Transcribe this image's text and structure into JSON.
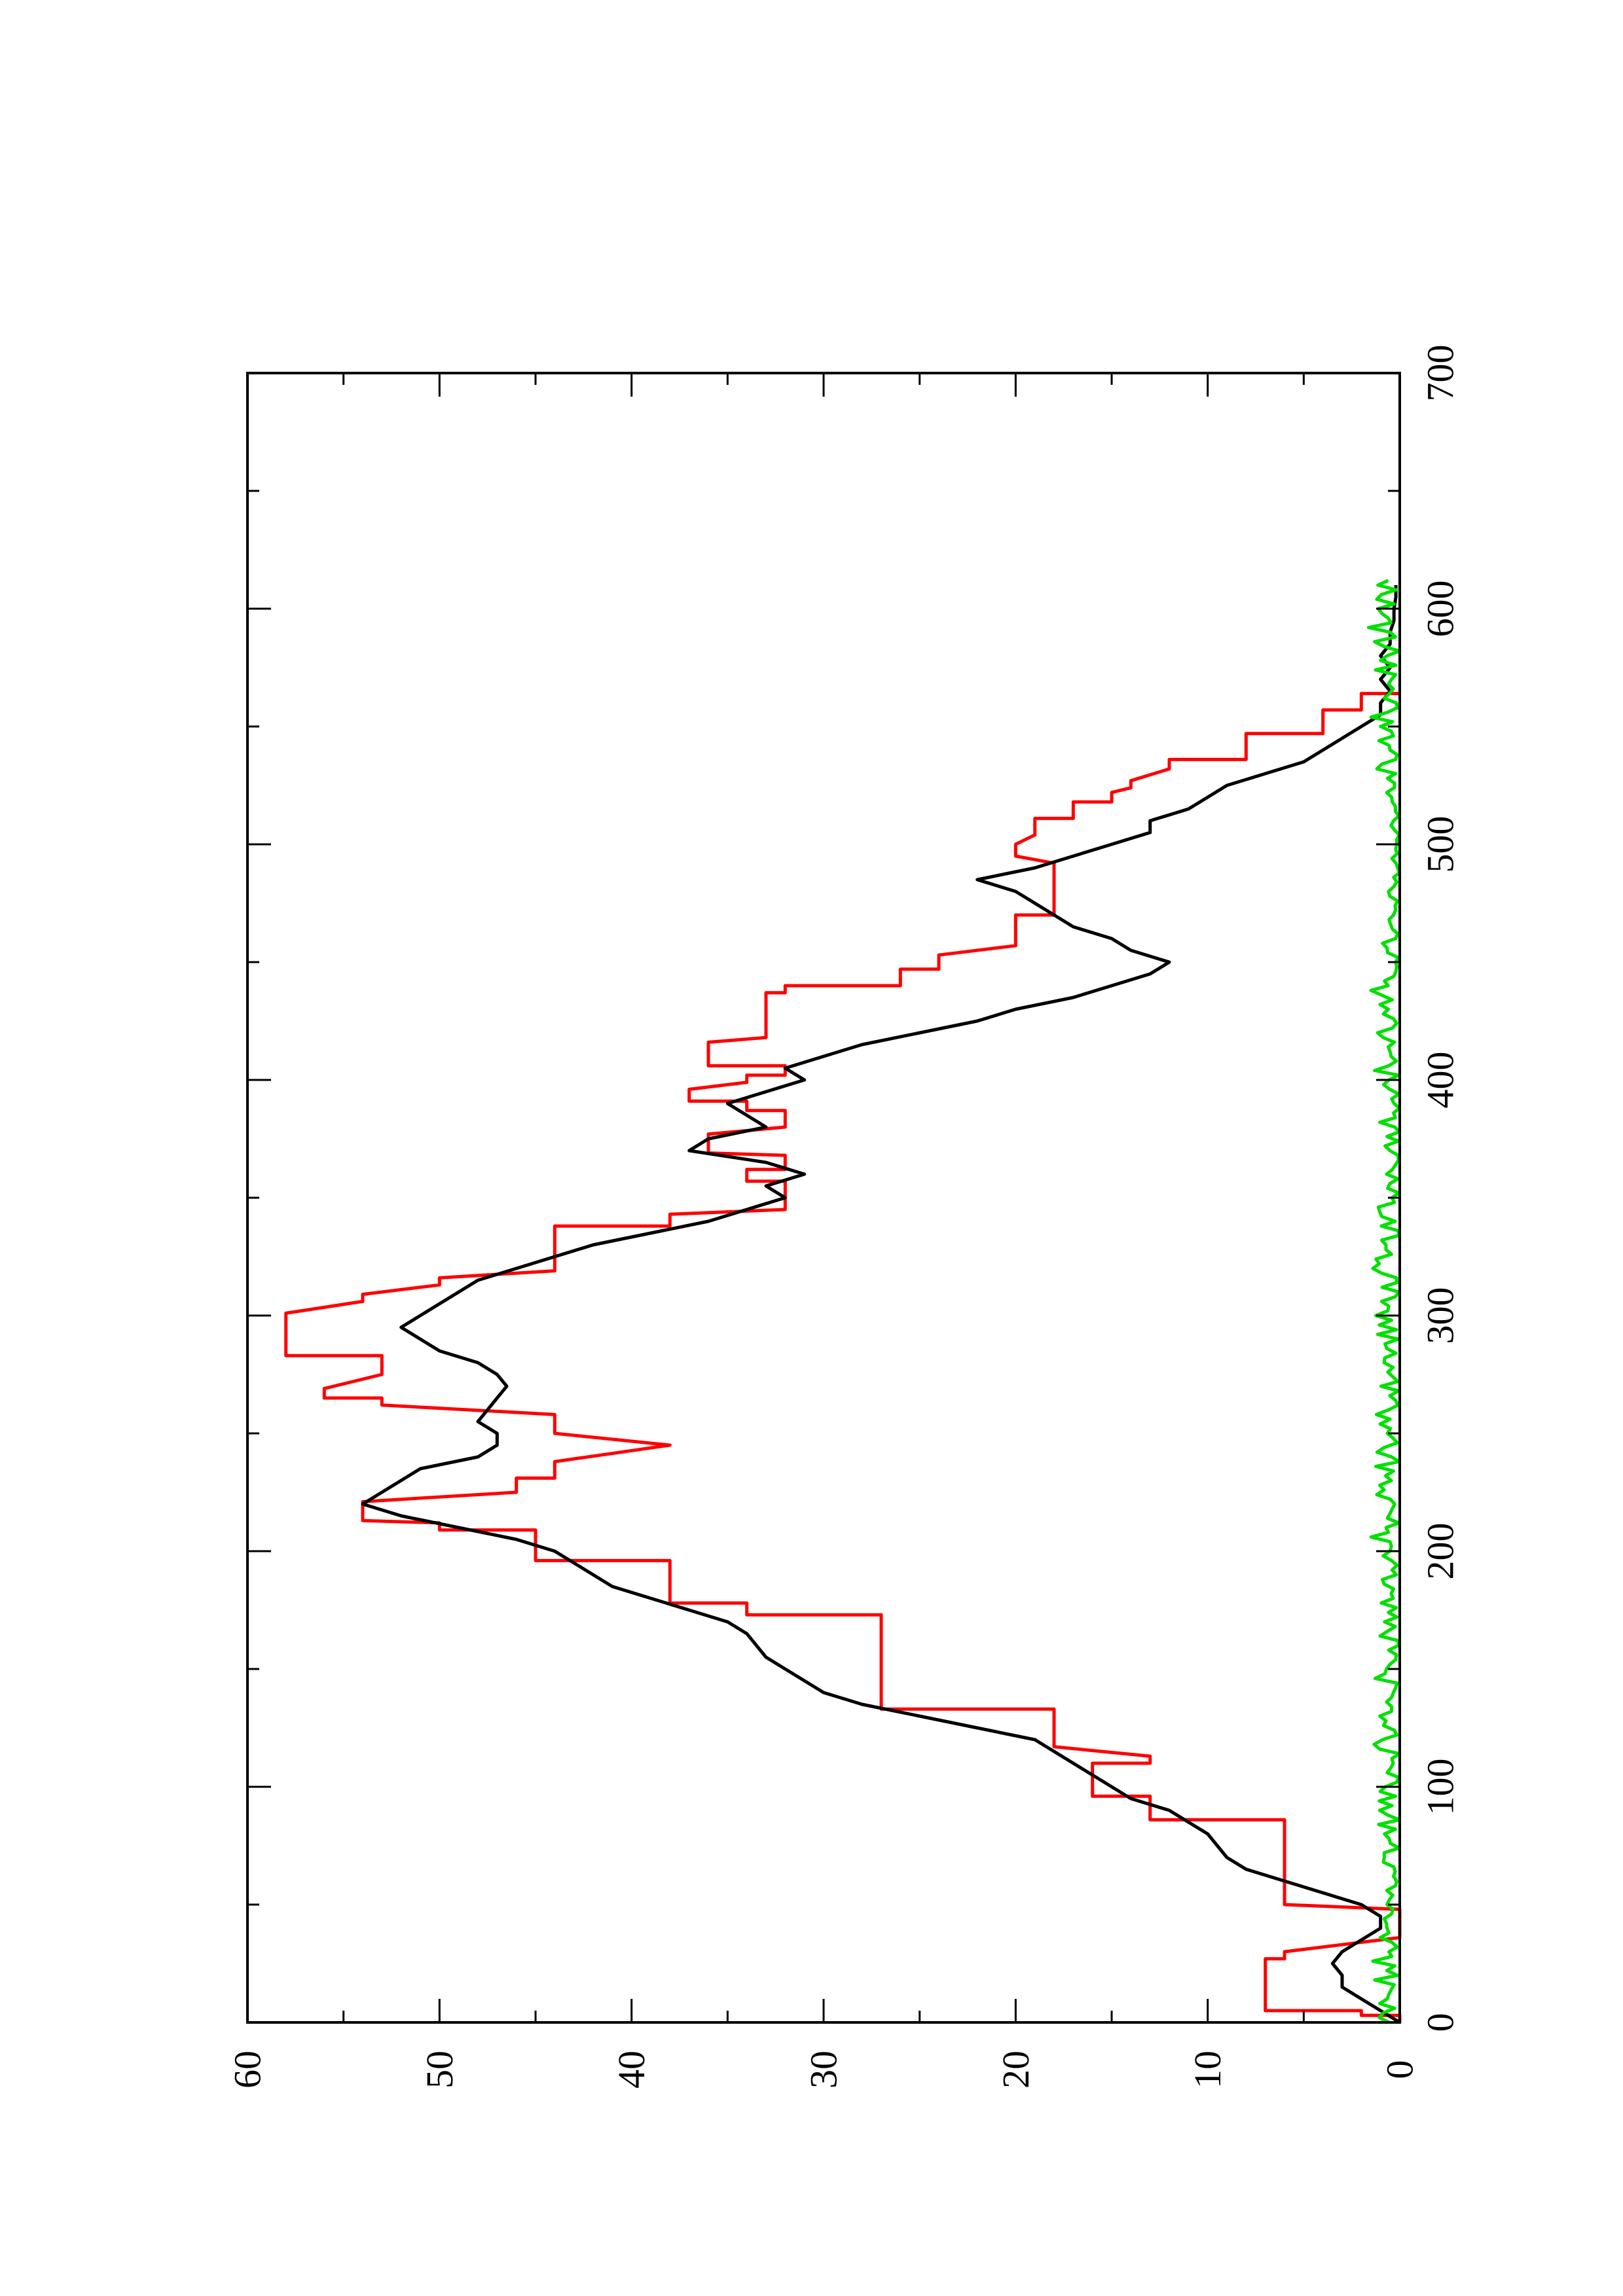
{
  "chart_data": {
    "type": "line",
    "title": "",
    "xlabel": "",
    "ylabel": "",
    "orientation": "rotated-90-ccw",
    "xlim": [
      0,
      700
    ],
    "ylim": [
      0,
      60
    ],
    "x_ticks": [
      {
        "value": 0,
        "label": "0"
      },
      {
        "value": 100,
        "label": "100"
      },
      {
        "value": 200,
        "label": "200"
      },
      {
        "value": 300,
        "label": "300"
      },
      {
        "value": 400,
        "label": "400"
      },
      {
        "value": 500,
        "label": "500"
      },
      {
        "value": 600,
        "label": "600"
      },
      {
        "value": 700,
        "label": "700"
      }
    ],
    "x_minor_ticks": [
      50,
      150,
      250,
      350,
      450,
      550,
      650
    ],
    "y_ticks": [
      {
        "value": 0,
        "label": "0"
      },
      {
        "value": 10,
        "label": "10"
      },
      {
        "value": 20,
        "label": "20"
      },
      {
        "value": 30,
        "label": "30"
      },
      {
        "value": 40,
        "label": "40"
      },
      {
        "value": 50,
        "label": "50"
      },
      {
        "value": 60,
        "label": "60"
      }
    ],
    "y_minor_ticks": [
      5,
      15,
      25,
      35,
      45,
      55
    ],
    "grid": false,
    "legend": "none",
    "series": [
      {
        "color": "#ff0000",
        "style": "step",
        "points": [
          [
            0,
            0
          ],
          [
            3,
            0
          ],
          [
            3,
            2
          ],
          [
            5,
            2
          ],
          [
            5,
            7
          ],
          [
            27,
            7
          ],
          [
            27,
            6
          ],
          [
            30,
            6
          ],
          [
            36,
            0
          ],
          [
            48,
            0
          ],
          [
            50,
            6
          ],
          [
            86,
            6
          ],
          [
            86,
            13
          ],
          [
            96,
            13
          ],
          [
            96,
            16
          ],
          [
            110,
            16
          ],
          [
            110,
            13
          ],
          [
            113,
            13
          ],
          [
            117,
            18
          ],
          [
            133,
            18
          ],
          [
            133,
            27
          ],
          [
            173,
            27
          ],
          [
            173,
            34
          ],
          [
            178,
            34
          ],
          [
            178,
            38
          ],
          [
            196,
            38
          ],
          [
            196,
            45
          ],
          [
            209,
            45
          ],
          [
            209,
            50
          ],
          [
            212,
            50
          ],
          [
            213,
            54
          ],
          [
            221,
            54
          ],
          [
            225,
            46
          ],
          [
            231,
            46
          ],
          [
            231,
            44
          ],
          [
            238,
            44
          ],
          [
            245,
            38
          ],
          [
            250,
            44
          ],
          [
            258,
            44
          ],
          [
            262,
            53
          ],
          [
            265,
            53
          ],
          [
            265,
            56
          ],
          [
            269,
            56
          ],
          [
            275,
            53
          ],
          [
            283,
            53
          ],
          [
            283,
            58
          ],
          [
            301,
            58
          ],
          [
            306,
            54
          ],
          [
            309,
            54
          ],
          [
            313,
            50
          ],
          [
            316,
            50
          ],
          [
            319,
            44
          ],
          [
            338,
            44
          ],
          [
            338,
            38
          ],
          [
            343,
            38
          ],
          [
            345,
            32
          ],
          [
            357,
            32
          ],
          [
            357,
            34
          ],
          [
            362,
            34
          ],
          [
            362,
            32
          ],
          [
            368,
            32
          ],
          [
            369,
            36
          ],
          [
            377,
            36
          ],
          [
            380,
            32
          ],
          [
            387,
            32
          ],
          [
            387,
            34
          ],
          [
            391,
            34
          ],
          [
            391,
            37
          ],
          [
            396,
            37
          ],
          [
            399,
            34
          ],
          [
            402,
            34
          ],
          [
            402,
            32
          ],
          [
            406,
            32
          ],
          [
            406,
            36
          ],
          [
            416,
            36
          ],
          [
            418,
            33
          ],
          [
            437,
            33
          ],
          [
            437,
            32
          ],
          [
            440,
            32
          ],
          [
            440,
            26
          ],
          [
            447,
            26
          ],
          [
            447,
            24
          ],
          [
            453,
            24
          ],
          [
            457,
            20
          ],
          [
            470,
            20
          ],
          [
            470,
            18
          ],
          [
            492,
            18
          ],
          [
            495,
            20
          ],
          [
            500,
            20
          ],
          [
            504,
            19
          ],
          [
            511,
            19
          ],
          [
            511,
            17
          ],
          [
            518,
            17
          ],
          [
            518,
            15
          ],
          [
            522,
            15
          ],
          [
            524,
            14
          ],
          [
            527,
            14
          ],
          [
            532,
            12
          ],
          [
            536,
            12
          ],
          [
            536,
            8
          ],
          [
            547,
            8
          ],
          [
            547,
            4
          ],
          [
            557,
            4
          ],
          [
            557,
            2
          ],
          [
            564,
            2
          ],
          [
            564,
            0
          ]
        ]
      },
      {
        "color": "#000000",
        "style": "line",
        "points": [
          [
            0,
            0
          ],
          [
            5,
            1
          ],
          [
            10,
            2
          ],
          [
            15,
            3
          ],
          [
            20,
            3
          ],
          [
            25,
            3.5
          ],
          [
            30,
            3
          ],
          [
            35,
            2
          ],
          [
            40,
            1
          ],
          [
            45,
            1
          ],
          [
            50,
            2
          ],
          [
            55,
            4
          ],
          [
            60,
            6
          ],
          [
            65,
            8
          ],
          [
            70,
            9
          ],
          [
            75,
            9.5
          ],
          [
            80,
            10
          ],
          [
            85,
            11
          ],
          [
            90,
            12
          ],
          [
            95,
            14
          ],
          [
            100,
            15
          ],
          [
            105,
            16
          ],
          [
            110,
            17
          ],
          [
            115,
            18
          ],
          [
            120,
            19
          ],
          [
            125,
            22
          ],
          [
            130,
            25
          ],
          [
            135,
            28
          ],
          [
            140,
            30
          ],
          [
            145,
            31
          ],
          [
            150,
            32
          ],
          [
            155,
            33
          ],
          [
            160,
            33.5
          ],
          [
            165,
            34
          ],
          [
            170,
            35
          ],
          [
            175,
            37
          ],
          [
            180,
            39
          ],
          [
            185,
            41
          ],
          [
            190,
            42
          ],
          [
            195,
            43
          ],
          [
            200,
            44
          ],
          [
            205,
            46
          ],
          [
            210,
            49
          ],
          [
            215,
            52
          ],
          [
            220,
            54
          ],
          [
            225,
            53
          ],
          [
            230,
            52
          ],
          [
            235,
            51
          ],
          [
            240,
            48
          ],
          [
            245,
            47
          ],
          [
            250,
            47
          ],
          [
            255,
            48
          ],
          [
            260,
            47.5
          ],
          [
            265,
            47
          ],
          [
            270,
            46.5
          ],
          [
            275,
            47
          ],
          [
            280,
            48
          ],
          [
            285,
            50
          ],
          [
            290,
            51
          ],
          [
            295,
            52
          ],
          [
            300,
            51
          ],
          [
            305,
            50
          ],
          [
            310,
            49
          ],
          [
            315,
            48
          ],
          [
            320,
            46
          ],
          [
            325,
            44
          ],
          [
            330,
            42
          ],
          [
            335,
            39
          ],
          [
            340,
            36
          ],
          [
            345,
            34
          ],
          [
            350,
            32
          ],
          [
            355,
            33
          ],
          [
            360,
            31
          ],
          [
            365,
            33
          ],
          [
            370,
            37
          ],
          [
            375,
            36
          ],
          [
            380,
            33
          ],
          [
            385,
            34
          ],
          [
            390,
            35
          ],
          [
            395,
            33
          ],
          [
            400,
            31
          ],
          [
            405,
            32
          ],
          [
            410,
            30
          ],
          [
            415,
            28
          ],
          [
            420,
            25
          ],
          [
            425,
            22
          ],
          [
            430,
            20
          ],
          [
            435,
            17
          ],
          [
            440,
            15
          ],
          [
            445,
            13
          ],
          [
            450,
            12
          ],
          [
            455,
            14
          ],
          [
            460,
            15
          ],
          [
            465,
            17
          ],
          [
            470,
            18
          ],
          [
            475,
            19
          ],
          [
            480,
            20
          ],
          [
            485,
            22
          ],
          [
            490,
            19
          ],
          [
            495,
            17
          ],
          [
            500,
            15
          ],
          [
            505,
            13
          ],
          [
            510,
            13
          ],
          [
            515,
            11
          ],
          [
            520,
            10
          ],
          [
            525,
            9
          ],
          [
            530,
            7
          ],
          [
            535,
            5
          ],
          [
            540,
            4
          ],
          [
            545,
            3
          ],
          [
            550,
            2
          ],
          [
            555,
            1
          ],
          [
            560,
            1
          ],
          [
            565,
            0.5
          ],
          [
            570,
            1
          ],
          [
            575,
            0.5
          ],
          [
            580,
            1
          ],
          [
            585,
            0.5
          ],
          [
            590,
            0.5
          ],
          [
            595,
            0.3
          ],
          [
            600,
            0.3
          ],
          [
            605,
            0.2
          ],
          [
            610,
            0.2
          ]
        ]
      },
      {
        "color": "#00e000",
        "style": "noise",
        "points": []
      }
    ]
  }
}
